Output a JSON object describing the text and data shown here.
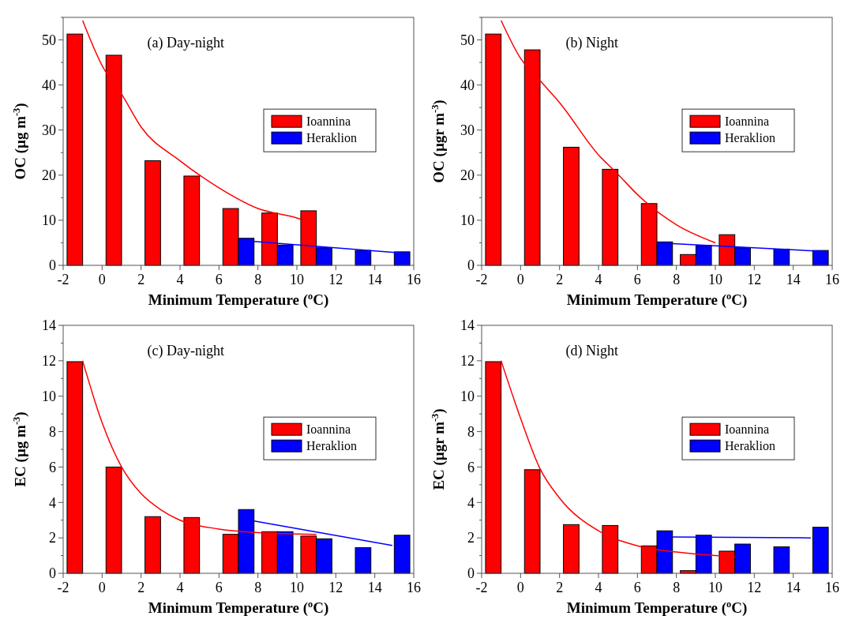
{
  "chart_data": [
    {
      "type": "bar",
      "title": "(a) Day-night",
      "xlabel": "Minimum Temperature ($^{o}$C)",
      "ylabel": "OC (µg m$^{-3}$)",
      "xlim": [
        -2,
        16
      ],
      "xticks": [
        -2,
        0,
        2,
        4,
        6,
        8,
        10,
        12,
        14,
        16
      ],
      "ylim": [
        0,
        55
      ],
      "yticks": [
        0,
        {
          "value": 5,
          "label": null
        },
        10,
        {
          "value": 15,
          "label": null
        },
        20,
        {
          "value": 25,
          "label": null
        },
        30,
        {
          "value": 35,
          "label": null
        },
        40,
        {
          "value": 45,
          "label": null
        },
        50,
        {
          "value": 55,
          "label": null
        }
      ],
      "legend": "right",
      "grid": false,
      "series": [
        {
          "name": "Ioannina",
          "color": "#ff0000",
          "x": [
            -1.4,
            0.6,
            2.6,
            4.6,
            6.6,
            8.6,
            10.6
          ],
          "values": [
            51.3,
            46.6,
            23.2,
            19.8,
            12.6,
            11.6,
            12.1
          ]
        },
        {
          "name": "Heraklion",
          "color": "#0000ff",
          "x": [
            7.4,
            9.4,
            11.4,
            13.4,
            15.4
          ],
          "values": [
            6.0,
            4.5,
            3.9,
            3.3,
            3.0
          ]
        },
        {
          "type": "line",
          "color": "#ff0000",
          "x": [
            -1,
            0,
            1,
            2,
            4,
            6,
            8,
            10,
            10.2
          ],
          "values": [
            54.3,
            44.3,
            38,
            30.7,
            23.2,
            17.2,
            12.6,
            10.5,
            10.2
          ]
        },
        {
          "type": "line",
          "color": "#0000ff",
          "x": [
            7.8,
            15.5
          ],
          "values": [
            5.3,
            2.7
          ]
        }
      ]
    },
    {
      "type": "bar",
      "title": "(b) Night",
      "xlabel": "Minimum Temperature ($^{o}$C)",
      "ylabel": "OC (µgr m$^{-3}$)",
      "xlim": [
        -2,
        16
      ],
      "xticks": [
        -2,
        0,
        2,
        4,
        6,
        8,
        10,
        12,
        14,
        16
      ],
      "ylim": [
        0,
        55
      ],
      "yticks": [
        0,
        {
          "value": 5,
          "label": null
        },
        10,
        {
          "value": 15,
          "label": null
        },
        20,
        {
          "value": 25,
          "label": null
        },
        30,
        {
          "value": 35,
          "label": null
        },
        40,
        {
          "value": 45,
          "label": null
        },
        50,
        {
          "value": 55,
          "label": null
        }
      ],
      "legend": "right",
      "grid": false,
      "series": [
        {
          "name": "Ioannina",
          "color": "#ff0000",
          "x": [
            -1.4,
            0.6,
            2.6,
            4.6,
            6.6,
            8.6,
            10.6
          ],
          "values": [
            51.3,
            47.8,
            26.2,
            21.3,
            13.7,
            2.4,
            6.8
          ]
        },
        {
          "name": "Heraklion",
          "color": "#0000ff",
          "x": [
            7.4,
            9.4,
            11.4,
            13.4,
            15.4
          ],
          "values": [
            5.2,
            4.4,
            3.9,
            3.6,
            3.3
          ]
        },
        {
          "type": "line",
          "color": "#ff0000",
          "x": [
            -1,
            0,
            1,
            2,
            4,
            5,
            6,
            8,
            10
          ],
          "values": [
            54.3,
            45.9,
            41,
            36.1,
            24.5,
            20.2,
            15.7,
            9,
            5
          ]
        },
        {
          "type": "line",
          "color": "#0000ff",
          "x": [
            7.8,
            15.5
          ],
          "values": [
            4.8,
            3.1
          ]
        }
      ]
    },
    {
      "type": "bar",
      "title": "(c) Day-night",
      "xlabel": "Minimum Temperature ($^{o}$C)",
      "ylabel": "EC (µg m$^{-3}$)",
      "xlim": [
        -2,
        16
      ],
      "xticks": [
        -2,
        0,
        2,
        4,
        6,
        8,
        10,
        12,
        14,
        16
      ],
      "ylim": [
        0,
        14
      ],
      "yticks": [
        0,
        {
          "value": 1,
          "label": null
        },
        2,
        {
          "value": 3,
          "label": null
        },
        4,
        {
          "value": 5,
          "label": null
        },
        6,
        {
          "value": 7,
          "label": null
        },
        8,
        {
          "value": 9,
          "label": null
        },
        10,
        {
          "value": 11,
          "label": null
        },
        12,
        {
          "value": 13,
          "label": null
        },
        14
      ],
      "legend": "right",
      "grid": false,
      "series": [
        {
          "name": "Ioannina",
          "color": "#ff0000",
          "x": [
            -1.4,
            0.6,
            2.6,
            4.6,
            6.6,
            8.6,
            10.6
          ],
          "values": [
            11.95,
            6.0,
            3.2,
            3.15,
            2.2,
            2.35,
            2.1
          ]
        },
        {
          "name": "Heraklion",
          "color": "#0000ff",
          "x": [
            7.4,
            9.4,
            11.4,
            13.4,
            15.4
          ],
          "values": [
            3.6,
            2.35,
            1.95,
            1.45,
            2.15
          ]
        },
        {
          "type": "line",
          "color": "#ff0000",
          "x": [
            -1,
            0,
            1,
            2,
            3,
            4,
            6,
            8,
            11
          ],
          "values": [
            12.0,
            8.5,
            6.0,
            4.5,
            3.6,
            3.0,
            2.5,
            2.3,
            2.2
          ]
        },
        {
          "type": "line",
          "color": "#0000ff",
          "x": [
            7.8,
            14.9
          ],
          "values": [
            2.95,
            1.57
          ]
        }
      ]
    },
    {
      "type": "bar",
      "title": "(d) Night",
      "xlabel": "Minimum Temperature ($^{o}$C)",
      "ylabel": "EC (µgr m$^{-3}$)",
      "xlim": [
        -2,
        16
      ],
      "xticks": [
        -2,
        0,
        2,
        4,
        6,
        8,
        10,
        12,
        14,
        16
      ],
      "ylim": [
        0,
        14
      ],
      "yticks": [
        0,
        {
          "value": 1,
          "label": null
        },
        2,
        {
          "value": 3,
          "label": null
        },
        4,
        {
          "value": 5,
          "label": null
        },
        6,
        {
          "value": 7,
          "label": null
        },
        8,
        {
          "value": 9,
          "label": null
        },
        10,
        {
          "value": 11,
          "label": null
        },
        12,
        {
          "value": 13,
          "label": null
        },
        14
      ],
      "legend": "right",
      "grid": false,
      "series": [
        {
          "name": "Ioannina",
          "color": "#ff0000",
          "x": [
            -1.4,
            0.6,
            2.6,
            4.6,
            6.6,
            8.6,
            10.6
          ],
          "values": [
            11.95,
            5.85,
            2.75,
            2.7,
            1.55,
            0.15,
            1.25
          ]
        },
        {
          "name": "Heraklion",
          "color": "#0000ff",
          "x": [
            7.4,
            9.4,
            11.4,
            13.4,
            15.4
          ],
          "values": [
            2.4,
            2.15,
            1.65,
            1.5,
            2.6
          ]
        },
        {
          "type": "line",
          "color": "#ff0000",
          "x": [
            -1,
            0,
            1,
            2,
            4,
            6,
            8,
            10,
            11
          ],
          "values": [
            12.0,
            8.75,
            5.9,
            4.25,
            2.4,
            1.55,
            1.2,
            1.0,
            0.95
          ]
        },
        {
          "type": "line",
          "color": "#0000ff",
          "x": [
            7.8,
            14.9
          ],
          "values": [
            2.05,
            2.0
          ]
        }
      ]
    }
  ]
}
